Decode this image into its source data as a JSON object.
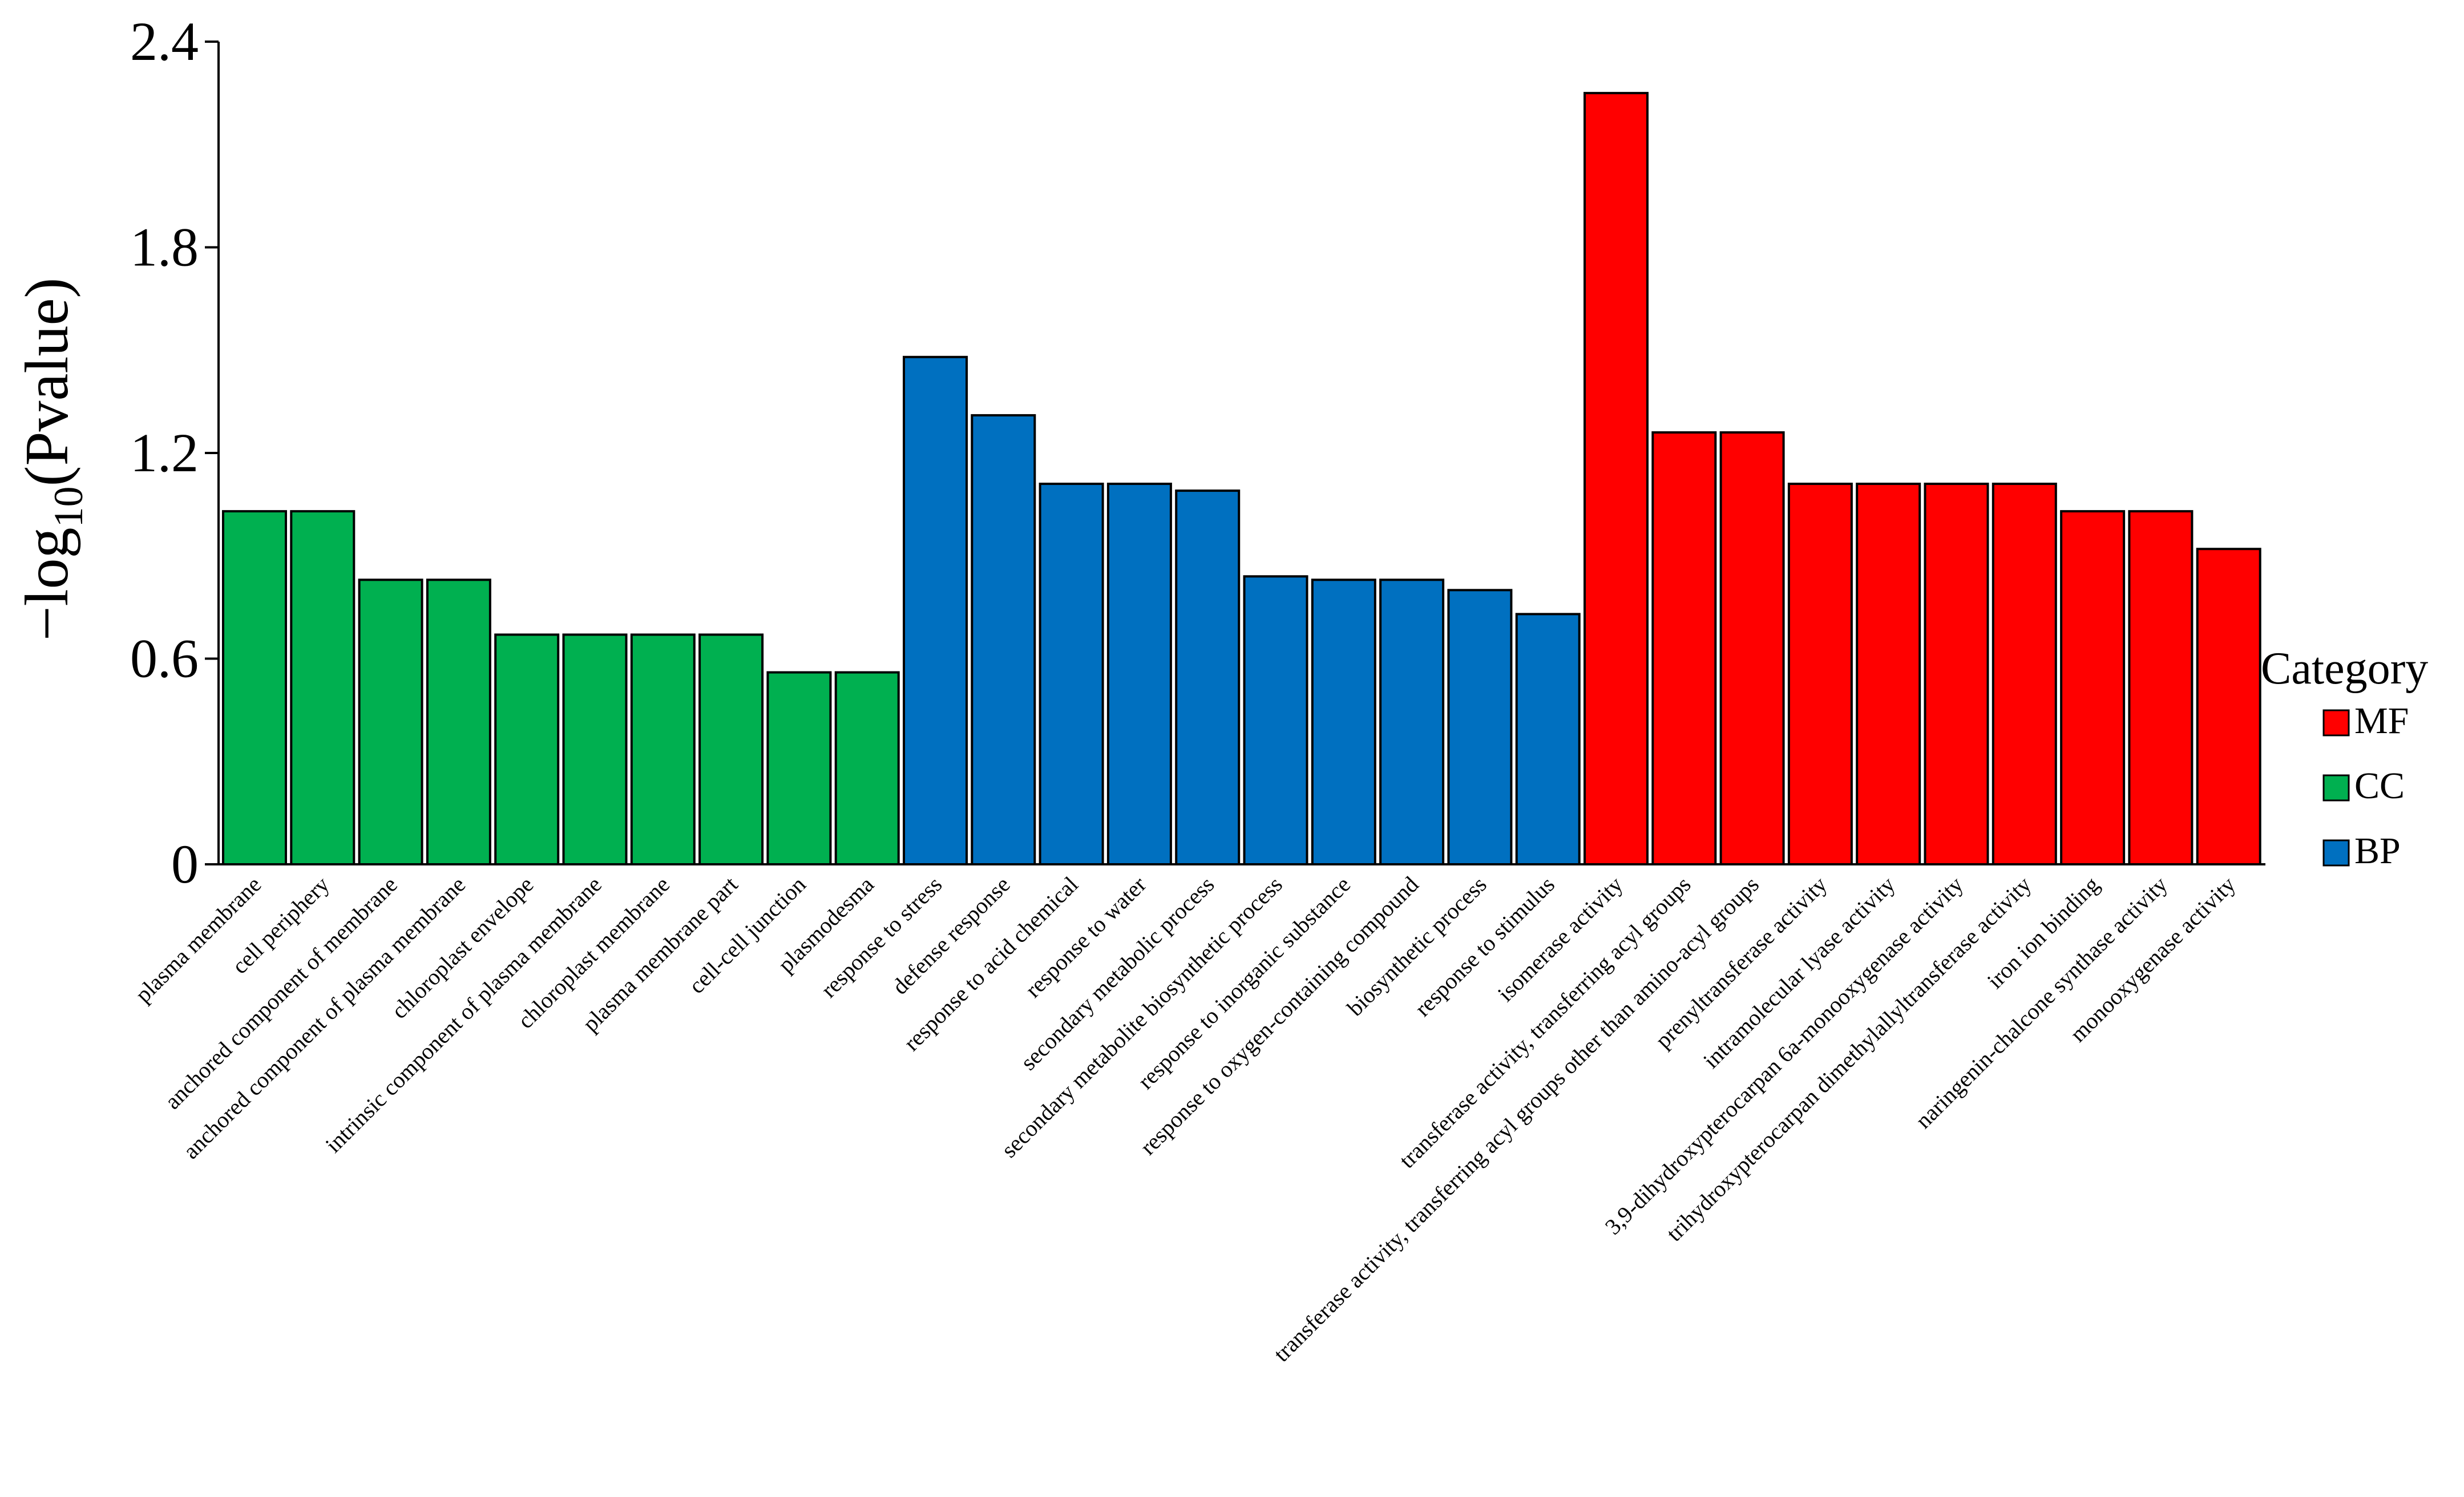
{
  "chart_data": {
    "type": "bar",
    "ylabel_main": "−log",
    "ylabel_sub": "10",
    "ylabel_rest": "(Pvalue)",
    "ylim": [
      0,
      2.4
    ],
    "yticks": [
      "0",
      "0.6",
      "1.2",
      "1.8",
      "2.4"
    ],
    "ytick_values": [
      0,
      0.6,
      1.2,
      1.8,
      2.4
    ],
    "categories": [
      "plasma membrane",
      "cell periphery",
      "anchored component of membrane",
      "anchored component of plasma membrane",
      "chloroplast envelope",
      "intrinsic component of plasma membrane",
      "chloroplast membrane",
      "plasma membrane part",
      "cell-cell junction",
      "plasmodesma",
      "response to stress",
      "defense response",
      "response to acid chemical",
      "response to water",
      "secondary metabolic process",
      "secondary metabolite biosynthetic process",
      "response to inorganic substance",
      "response to oxygen-containing compound",
      "biosynthetic process",
      "response to stimulus",
      "isomerase activity",
      "transferase activity, transferring acyl groups",
      "transferase activity, transferring acyl groups other than amino-acyl groups",
      "prenyltransferase activity",
      "intramolecular lyase activity",
      "3,9-dihydroxypterocarpan 6a-monooxygenase activity",
      "trihydroxypterocarpan dimethylallyltransferase activity",
      "iron ion binding",
      "naringenin-chalcone synthase activity",
      "monooxygenase activity"
    ],
    "values": [
      1.03,
      1.03,
      0.83,
      0.83,
      0.67,
      0.67,
      0.67,
      0.67,
      0.56,
      0.56,
      1.48,
      1.31,
      1.11,
      1.11,
      1.09,
      0.84,
      0.83,
      0.83,
      0.8,
      0.73,
      2.25,
      1.26,
      1.26,
      1.11,
      1.11,
      1.11,
      1.11,
      1.03,
      1.03,
      0.92
    ],
    "groups": [
      "CC",
      "CC",
      "CC",
      "CC",
      "CC",
      "CC",
      "CC",
      "CC",
      "CC",
      "CC",
      "BP",
      "BP",
      "BP",
      "BP",
      "BP",
      "BP",
      "BP",
      "BP",
      "BP",
      "BP",
      "MF",
      "MF",
      "MF",
      "MF",
      "MF",
      "MF",
      "MF",
      "MF",
      "MF",
      "MF"
    ],
    "group_colors": {
      "MF": "#FF0000",
      "CC": "#00B050",
      "BP": "#0070C0"
    },
    "legend": {
      "title": "Category",
      "position": "right",
      "items": [
        {
          "name": "MF",
          "color": "#FF0000"
        },
        {
          "name": "CC",
          "color": "#00B050"
        },
        {
          "name": "BP",
          "color": "#0070C0"
        }
      ]
    },
    "grid": false
  }
}
